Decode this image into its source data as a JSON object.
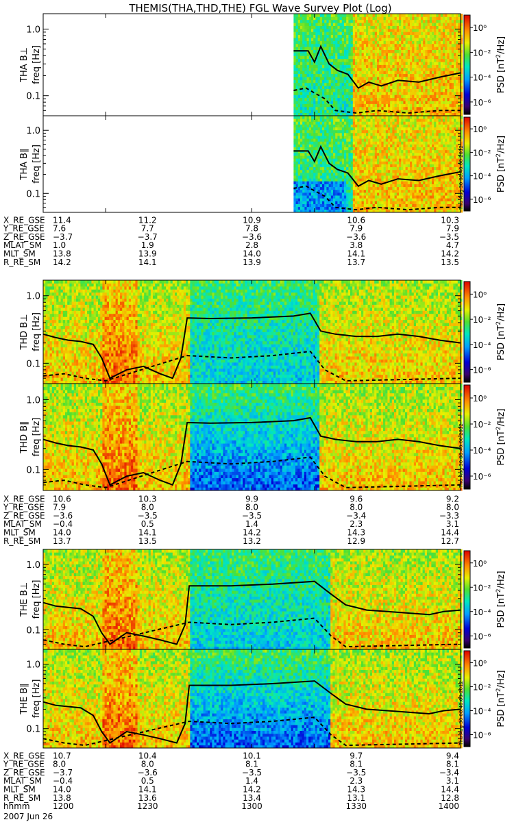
{
  "title": "THEMIS(THA,THD,THE) FGL Wave Survey Plot (Log)",
  "colorbar": {
    "label": "PSD [nT²/Hz]",
    "label_main": "PSD [nT",
    "label_tail": "/Hz]",
    "tick_labels": [
      "10⁰",
      "10⁻²",
      "10⁻⁴",
      "10⁻⁶"
    ],
    "tick_exponents": [
      0,
      -2,
      -4,
      -6
    ],
    "stamp": "Thu Aug 30 08:40:00 2012"
  },
  "freq_axis": {
    "label": "freq [Hz]",
    "tick_labels": [
      "1.0",
      "0.1"
    ],
    "ticks": [
      1.0,
      0.1
    ],
    "range": [
      0.05,
      1.7
    ],
    "scale": "log"
  },
  "time_axis": {
    "range": [
      1200,
      1400
    ],
    "tick_times": [
      1200,
      1230,
      1300,
      1330,
      1400
    ]
  },
  "probes": [
    {
      "name": "THA",
      "panels": [
        {
          "label": "THA B⊥",
          "data_start": 1320
        },
        {
          "label": "THA B∥",
          "data_start": 1320
        }
      ],
      "ephemeris": [
        {
          "name": "X_RE_GSE",
          "values": [
            "11.4",
            "11.2",
            "10.9",
            "10.6",
            "10.3"
          ]
        },
        {
          "name": "Y_RE_GSE",
          "values": [
            "7.6",
            "7.7",
            "7.8",
            "7.9",
            "7.9"
          ]
        },
        {
          "name": "Z_RE_GSE",
          "values": [
            "−3.7",
            "−3.7",
            "−3.6",
            "−3.6",
            "−3.5"
          ]
        },
        {
          "name": "MLAT_SM",
          "values": [
            "1.0",
            "1.9",
            "2.8",
            "3.8",
            "4.7"
          ]
        },
        {
          "name": "MLT_SM",
          "values": [
            "13.8",
            "13.9",
            "14.0",
            "14.1",
            "14.2"
          ]
        },
        {
          "name": "R_RE_SM",
          "values": [
            "14.2",
            "14.1",
            "13.9",
            "13.7",
            "13.5"
          ]
        }
      ]
    },
    {
      "name": "THD",
      "panels": [
        {
          "label": "THD B⊥",
          "data_start": 1200
        },
        {
          "label": "THD B∥",
          "data_start": 1200
        }
      ],
      "ephemeris": [
        {
          "name": "X_RE_GSE",
          "values": [
            "10.6",
            "10.3",
            "9.9",
            "9.6",
            "9.2"
          ]
        },
        {
          "name": "Y_RE_GSE",
          "values": [
            "7.9",
            "8.0",
            "8.0",
            "8.0",
            "8.0"
          ]
        },
        {
          "name": "Z_RE_GSE",
          "values": [
            "−3.6",
            "−3.5",
            "−3.5",
            "−3.4",
            "−3.3"
          ]
        },
        {
          "name": "MLAT_SM",
          "values": [
            "−0.4",
            "0.5",
            "1.4",
            "2.3",
            "3.1"
          ]
        },
        {
          "name": "MLT_SM",
          "values": [
            "14.0",
            "14.1",
            "14.2",
            "14.3",
            "14.4"
          ]
        },
        {
          "name": "R_RE_SM",
          "values": [
            "13.7",
            "13.5",
            "13.2",
            "12.9",
            "12.7"
          ]
        }
      ]
    },
    {
      "name": "THE",
      "panels": [
        {
          "label": "THE B⊥",
          "data_start": 1200
        },
        {
          "label": "THE B∥",
          "data_start": 1200
        }
      ],
      "ephemeris": [
        {
          "name": "X_RE_GSE",
          "values": [
            "10.7",
            "10.4",
            "10.1",
            "9.7",
            "9.4"
          ]
        },
        {
          "name": "Y_RE_GSE",
          "values": [
            "8.0",
            "8.0",
            "8.1",
            "8.1",
            "8.1"
          ]
        },
        {
          "name": "Z_RE_GSE",
          "values": [
            "−3.7",
            "−3.6",
            "−3.5",
            "−3.5",
            "−3.4"
          ]
        },
        {
          "name": "MLAT_SM",
          "values": [
            "−0.4",
            "0.5",
            "1.4",
            "2.3",
            "3.1"
          ]
        },
        {
          "name": "MLT_SM",
          "values": [
            "14.0",
            "14.1",
            "14.2",
            "14.3",
            "14.4"
          ]
        },
        {
          "name": "R_RE_SM",
          "values": [
            "13.8",
            "13.6",
            "13.4",
            "13.1",
            "12.8"
          ]
        },
        {
          "name": "hhmm",
          "values": [
            "1200",
            "1230",
            "1300",
            "1330",
            "1400"
          ]
        }
      ]
    }
  ],
  "date_label": "2007 Jun 26",
  "chart_data": {
    "type": "heatmap",
    "title": "THEMIS(THA,THD,THE) FGL Wave Survey Plot (Log)",
    "xlabel": "hhmm",
    "ylabel": "freq [Hz]",
    "x_range": [
      1200,
      1400
    ],
    "y_range": [
      0.05,
      1.7
    ],
    "y_scale": "log",
    "color_scale": "log PSD [nT²/Hz]",
    "color_range_exponent": [
      -7,
      1
    ],
    "panels": [
      {
        "name": "THA B⊥",
        "x_start": 1320,
        "solid_line": [
          [
            1320,
            0.47
          ],
          [
            1327,
            0.47
          ],
          [
            1330,
            0.32
          ],
          [
            1333,
            0.55
          ],
          [
            1337,
            0.3
          ],
          [
            1341,
            0.24
          ],
          [
            1346,
            0.21
          ],
          [
            1351,
            0.13
          ],
          [
            1356,
            0.16
          ],
          [
            1362,
            0.14
          ],
          [
            1370,
            0.17
          ],
          [
            1380,
            0.16
          ],
          [
            1390,
            0.19
          ],
          [
            1400,
            0.22
          ]
        ],
        "dashed_line": [
          [
            1320,
            0.12
          ],
          [
            1326,
            0.13
          ],
          [
            1330,
            0.11
          ],
          [
            1335,
            0.09
          ],
          [
            1340,
            0.06
          ],
          [
            1350,
            0.055
          ],
          [
            1360,
            0.06
          ],
          [
            1375,
            0.055
          ],
          [
            1390,
            0.06
          ],
          [
            1400,
            0.06
          ]
        ]
      },
      {
        "name": "THA B∥",
        "x_start": 1320,
        "solid_line": [
          [
            1320,
            0.47
          ],
          [
            1327,
            0.47
          ],
          [
            1330,
            0.32
          ],
          [
            1333,
            0.55
          ],
          [
            1337,
            0.3
          ],
          [
            1341,
            0.24
          ],
          [
            1346,
            0.21
          ],
          [
            1351,
            0.13
          ],
          [
            1356,
            0.16
          ],
          [
            1362,
            0.14
          ],
          [
            1370,
            0.17
          ],
          [
            1380,
            0.16
          ],
          [
            1390,
            0.19
          ],
          [
            1400,
            0.22
          ]
        ],
        "dashed_line": [
          [
            1320,
            0.12
          ],
          [
            1326,
            0.13
          ],
          [
            1330,
            0.11
          ],
          [
            1335,
            0.09
          ],
          [
            1340,
            0.06
          ],
          [
            1350,
            0.055
          ],
          [
            1360,
            0.06
          ],
          [
            1375,
            0.055
          ],
          [
            1390,
            0.06
          ],
          [
            1400,
            0.06
          ]
        ]
      },
      {
        "name": "THD B⊥",
        "x_start": 1200,
        "solid_line": [
          [
            1200,
            0.27
          ],
          [
            1206,
            0.24
          ],
          [
            1212,
            0.22
          ],
          [
            1218,
            0.21
          ],
          [
            1224,
            0.19
          ],
          [
            1228,
            0.12
          ],
          [
            1232,
            0.06
          ],
          [
            1240,
            0.08
          ],
          [
            1248,
            0.09
          ],
          [
            1256,
            0.07
          ],
          [
            1262,
            0.06
          ],
          [
            1266,
            0.12
          ],
          [
            1269,
            0.47
          ],
          [
            1280,
            0.46
          ],
          [
            1300,
            0.47
          ],
          [
            1320,
            0.5
          ],
          [
            1328,
            0.55
          ],
          [
            1333,
            0.3
          ],
          [
            1340,
            0.27
          ],
          [
            1350,
            0.25
          ],
          [
            1360,
            0.25
          ],
          [
            1370,
            0.27
          ],
          [
            1380,
            0.25
          ],
          [
            1390,
            0.22
          ],
          [
            1400,
            0.2
          ]
        ],
        "dashed_line": [
          [
            1200,
            0.065
          ],
          [
            1210,
            0.07
          ],
          [
            1220,
            0.06
          ],
          [
            1230,
            0.055
          ],
          [
            1269,
            0.13
          ],
          [
            1290,
            0.12
          ],
          [
            1310,
            0.13
          ],
          [
            1328,
            0.15
          ],
          [
            1335,
            0.08
          ],
          [
            1345,
            0.055
          ],
          [
            1400,
            0.06
          ]
        ]
      },
      {
        "name": "THD B∥",
        "x_start": 1200,
        "solid_line": [
          [
            1200,
            0.27
          ],
          [
            1206,
            0.24
          ],
          [
            1212,
            0.22
          ],
          [
            1218,
            0.21
          ],
          [
            1224,
            0.19
          ],
          [
            1228,
            0.12
          ],
          [
            1232,
            0.06
          ],
          [
            1240,
            0.08
          ],
          [
            1248,
            0.09
          ],
          [
            1256,
            0.07
          ],
          [
            1262,
            0.06
          ],
          [
            1266,
            0.12
          ],
          [
            1269,
            0.47
          ],
          [
            1280,
            0.46
          ],
          [
            1300,
            0.47
          ],
          [
            1320,
            0.5
          ],
          [
            1328,
            0.55
          ],
          [
            1333,
            0.3
          ],
          [
            1340,
            0.27
          ],
          [
            1350,
            0.25
          ],
          [
            1360,
            0.25
          ],
          [
            1370,
            0.27
          ],
          [
            1380,
            0.25
          ],
          [
            1390,
            0.22
          ],
          [
            1400,
            0.2
          ]
        ],
        "dashed_line": [
          [
            1200,
            0.065
          ],
          [
            1210,
            0.07
          ],
          [
            1220,
            0.06
          ],
          [
            1230,
            0.055
          ],
          [
            1269,
            0.13
          ],
          [
            1290,
            0.12
          ],
          [
            1310,
            0.13
          ],
          [
            1328,
            0.15
          ],
          [
            1335,
            0.08
          ],
          [
            1345,
            0.055
          ],
          [
            1400,
            0.06
          ]
        ]
      },
      {
        "name": "THE B⊥",
        "x_start": 1200,
        "solid_line": [
          [
            1200,
            0.26
          ],
          [
            1206,
            0.23
          ],
          [
            1212,
            0.22
          ],
          [
            1218,
            0.21
          ],
          [
            1224,
            0.16
          ],
          [
            1228,
            0.09
          ],
          [
            1232,
            0.06
          ],
          [
            1240,
            0.09
          ],
          [
            1248,
            0.08
          ],
          [
            1256,
            0.07
          ],
          [
            1264,
            0.06
          ],
          [
            1268,
            0.12
          ],
          [
            1270,
            0.47
          ],
          [
            1290,
            0.47
          ],
          [
            1310,
            0.5
          ],
          [
            1330,
            0.55
          ],
          [
            1338,
            0.35
          ],
          [
            1345,
            0.24
          ],
          [
            1355,
            0.2
          ],
          [
            1365,
            0.19
          ],
          [
            1375,
            0.18
          ],
          [
            1385,
            0.17
          ],
          [
            1392,
            0.19
          ],
          [
            1400,
            0.2
          ]
        ],
        "dashed_line": [
          [
            1200,
            0.07
          ],
          [
            1210,
            0.06
          ],
          [
            1220,
            0.055
          ],
          [
            1270,
            0.13
          ],
          [
            1290,
            0.12
          ],
          [
            1310,
            0.13
          ],
          [
            1330,
            0.15
          ],
          [
            1338,
            0.08
          ],
          [
            1345,
            0.055
          ],
          [
            1400,
            0.06
          ]
        ]
      },
      {
        "name": "THE B∥",
        "x_start": 1200,
        "solid_line": [
          [
            1200,
            0.26
          ],
          [
            1206,
            0.23
          ],
          [
            1212,
            0.22
          ],
          [
            1218,
            0.21
          ],
          [
            1224,
            0.16
          ],
          [
            1228,
            0.09
          ],
          [
            1232,
            0.06
          ],
          [
            1240,
            0.09
          ],
          [
            1248,
            0.08
          ],
          [
            1256,
            0.07
          ],
          [
            1264,
            0.06
          ],
          [
            1268,
            0.12
          ],
          [
            1270,
            0.47
          ],
          [
            1290,
            0.47
          ],
          [
            1310,
            0.5
          ],
          [
            1330,
            0.55
          ],
          [
            1338,
            0.35
          ],
          [
            1345,
            0.24
          ],
          [
            1355,
            0.2
          ],
          [
            1365,
            0.19
          ],
          [
            1375,
            0.18
          ],
          [
            1385,
            0.17
          ],
          [
            1392,
            0.19
          ],
          [
            1400,
            0.2
          ]
        ],
        "dashed_line": [
          [
            1200,
            0.07
          ],
          [
            1210,
            0.06
          ],
          [
            1220,
            0.055
          ],
          [
            1270,
            0.13
          ],
          [
            1290,
            0.12
          ],
          [
            1310,
            0.13
          ],
          [
            1330,
            0.15
          ],
          [
            1338,
            0.08
          ],
          [
            1345,
            0.055
          ],
          [
            1400,
            0.06
          ]
        ]
      }
    ]
  }
}
